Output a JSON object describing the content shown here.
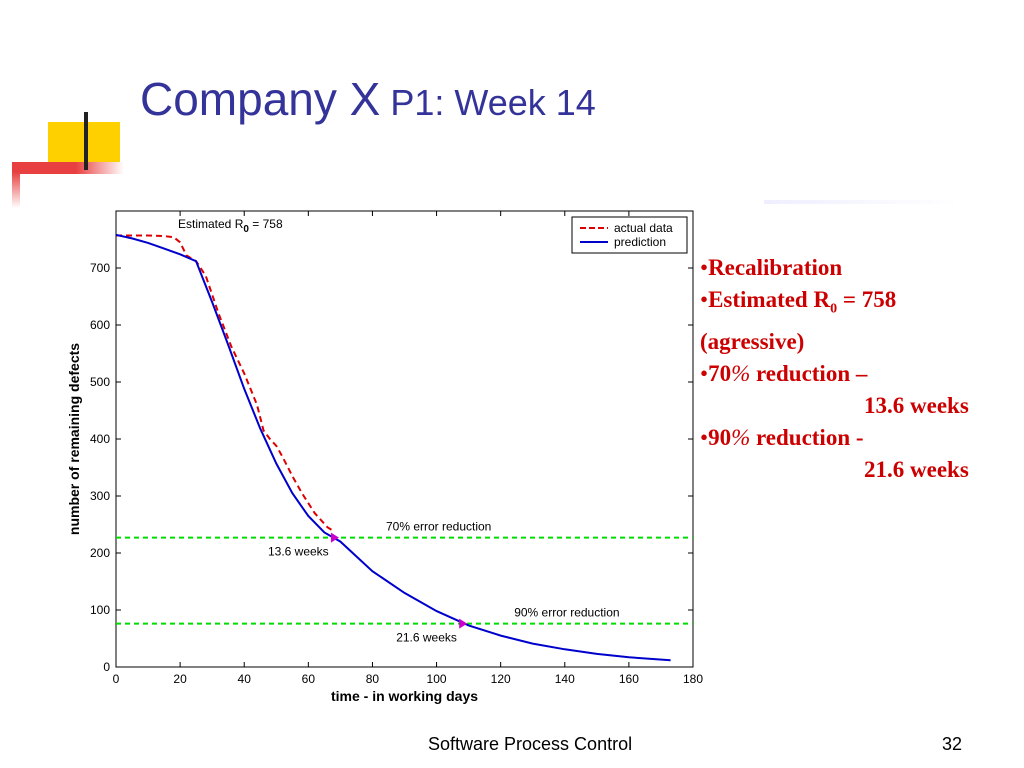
{
  "slide": {
    "title_main": "Company ",
    "title_x": "X",
    "title_sub": " P1: Week 14",
    "footer": "Software Process Control",
    "page_number": "32"
  },
  "bullets": {
    "marker": "•",
    "b1": "Recalibration",
    "b2_pre": "Estimated R",
    "b2_sub": "0",
    "b2_post": " = 758",
    "b2_cont": "(agressive)",
    "b3_num": "70",
    "b3_pct": "%",
    "b3_text": " reduction –",
    "b3_cont": "13.6 weeks",
    "b4_num": "90",
    "b4_pct": "%",
    "b4_text": " reduction  -",
    "b4_cont": "21.6 weeks"
  },
  "colors": {
    "title": "#333399",
    "bullets": "#cc0000",
    "actual": "#dd0000",
    "prediction": "#0000cc",
    "threshold": "#00dd00",
    "marker": "#cc00cc",
    "deco_yellow": "#ffd000",
    "deco_red": "#e84040"
  },
  "chart_data": {
    "type": "line",
    "xlabel": "time - in working days",
    "ylabel": "number of remaining defects",
    "xlim": [
      0,
      180
    ],
    "ylim": [
      0,
      800
    ],
    "xticks": [
      0,
      20,
      40,
      60,
      80,
      100,
      120,
      140,
      160,
      180
    ],
    "yticks": [
      0,
      100,
      200,
      300,
      400,
      500,
      600,
      700
    ],
    "grid": false,
    "legend_position": "top-right",
    "estimate_label_pre": "Estimated R",
    "estimate_label_sub": "0",
    "estimate_label_post": " = 758",
    "series": [
      {
        "name": "actual data",
        "style": "dashed",
        "x": [
          0,
          5,
          10,
          15,
          18,
          20,
          22,
          25,
          28,
          32,
          36,
          40,
          44,
          46,
          48,
          50,
          52,
          55,
          58,
          62,
          66,
          68
        ],
        "y": [
          757,
          757,
          757,
          756,
          754,
          745,
          722,
          712,
          686,
          620,
          562,
          515,
          460,
          415,
          400,
          388,
          368,
          335,
          305,
          270,
          245,
          238
        ]
      },
      {
        "name": "prediction",
        "style": "solid",
        "x": [
          0,
          5,
          10,
          15,
          20,
          25,
          30,
          35,
          40,
          45,
          50,
          55,
          60,
          65,
          70,
          80,
          90,
          100,
          110,
          120,
          130,
          140,
          150,
          160,
          173
        ],
        "y": [
          758,
          752,
          744,
          734,
          724,
          712,
          640,
          565,
          488,
          418,
          357,
          305,
          265,
          236,
          220,
          168,
          130,
          98,
          73,
          55,
          41,
          31,
          23,
          17,
          12
        ]
      }
    ],
    "thresholds": [
      {
        "y": 227,
        "label": "70% error reduction",
        "marker_x": 68,
        "marker_label": "13.6 weeks"
      },
      {
        "y": 76,
        "label": "90% error reduction",
        "marker_x": 108,
        "marker_label": "21.6 weeks"
      }
    ]
  }
}
